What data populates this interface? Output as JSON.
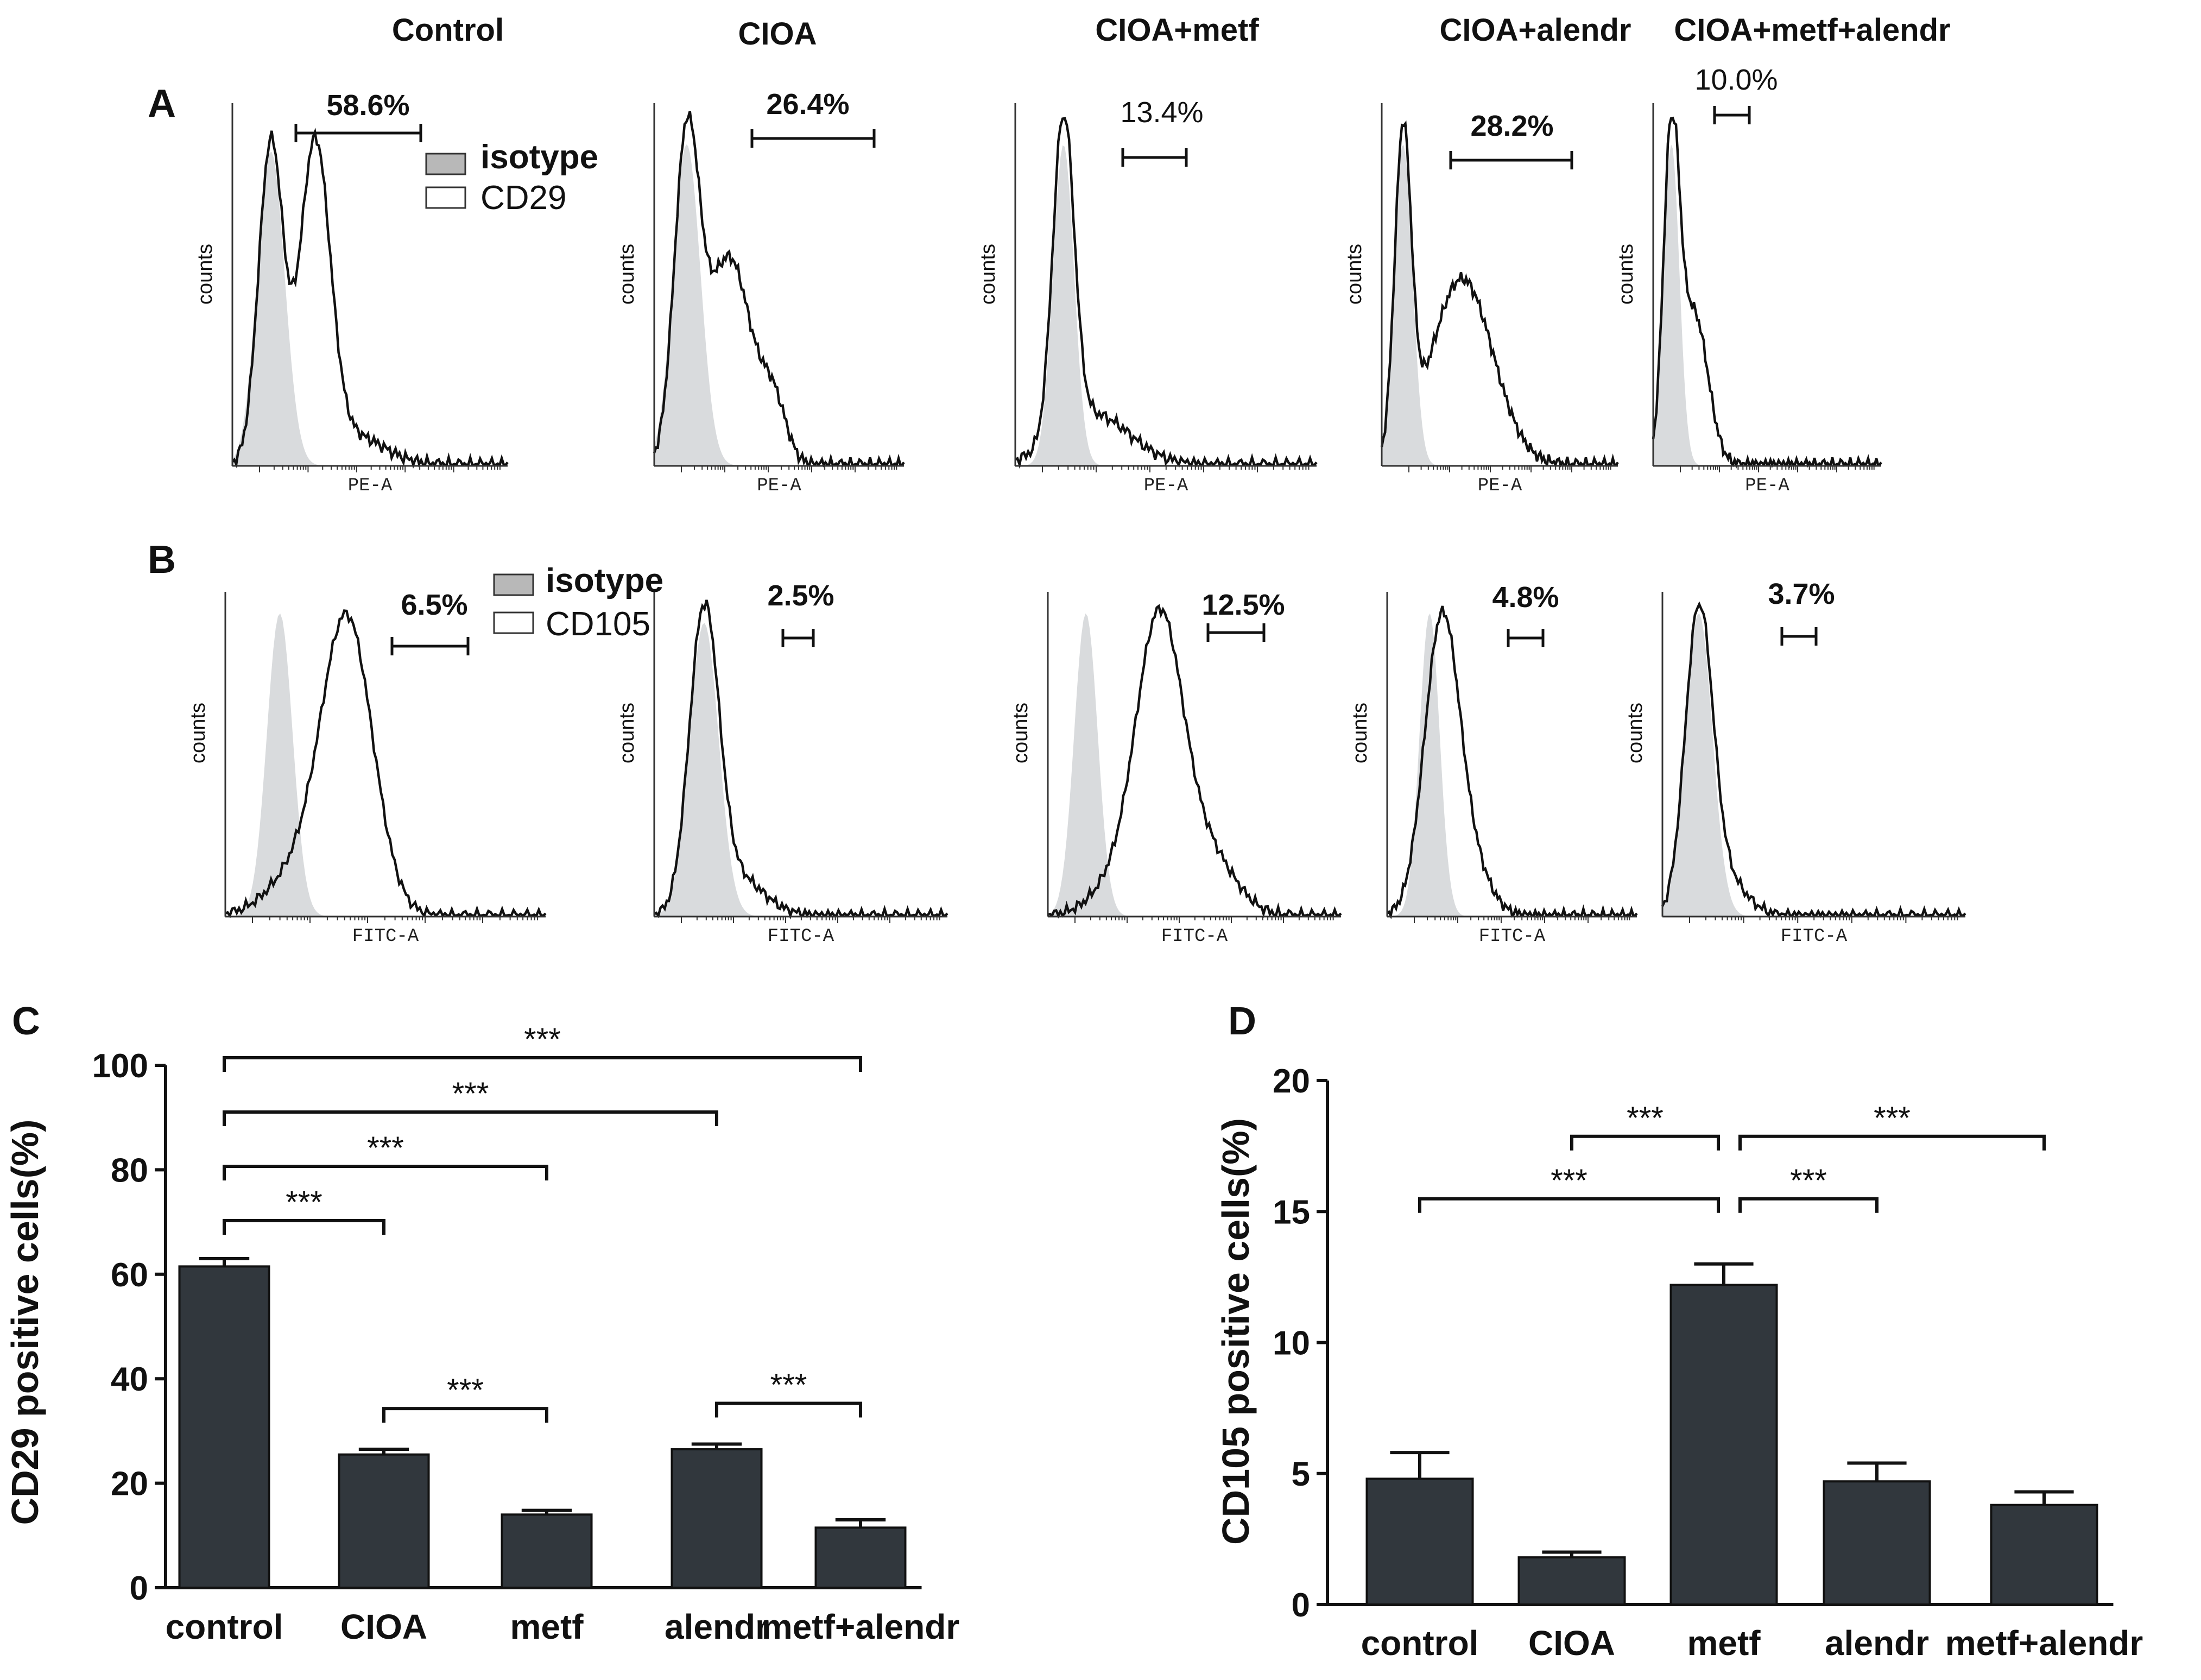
{
  "colors": {
    "bar": "#31373d",
    "iso_fill": "#d9dbdd",
    "line": "#111111",
    "text": "#111111"
  },
  "column_titles": [
    "Control",
    "CIOA",
    "CIOA+metf",
    "CIOA+alendr",
    "CIOA+metf+alendr"
  ],
  "panel_letters": {
    "a": "A",
    "b": "B",
    "c": "C",
    "d": "D"
  },
  "flow": {
    "count_label": "counts",
    "legend": {
      "isotype": "isotype",
      "cd29": "CD29",
      "cd105": "CD105"
    },
    "row_a": {
      "axis_label": "PE-A",
      "percents": [
        "58.6%",
        "26.4%",
        "13.4%",
        "28.2%",
        "10.0%"
      ]
    },
    "row_b": {
      "axis_label": "FITC-A",
      "percents": [
        "6.5%",
        "2.5%",
        "12.5%",
        "4.8%",
        "3.7%"
      ]
    }
  },
  "chart_data": [
    {
      "type": "bar",
      "panel": "C",
      "title": "",
      "xlabel": "",
      "ylabel": "CD29 positive cells(%)",
      "ylim": [
        0,
        100
      ],
      "yticks": [
        "0",
        "20",
        "40",
        "60",
        "80",
        "100"
      ],
      "categories": [
        "control",
        "CIOA",
        "metf",
        "alendr",
        "metf+alendr"
      ],
      "values": [
        61.5,
        25.5,
        14,
        26.5,
        11.5
      ],
      "errors": [
        1.5,
        1,
        0.8,
        1,
        1.5
      ],
      "significance": [
        {
          "from": 0,
          "to": 1,
          "label": "***"
        },
        {
          "from": 0,
          "to": 2,
          "label": "***"
        },
        {
          "from": 0,
          "to": 3,
          "label": "***"
        },
        {
          "from": 0,
          "to": 4,
          "label": "***"
        },
        {
          "from": 1,
          "to": 2,
          "label": "***"
        },
        {
          "from": 3,
          "to": 4,
          "label": "***"
        }
      ]
    },
    {
      "type": "bar",
      "panel": "D",
      "title": "",
      "xlabel": "",
      "ylabel": "CD105 positive cells(%)",
      "ylim": [
        0,
        20
      ],
      "yticks": [
        "0",
        "5",
        "10",
        "15",
        "20"
      ],
      "categories": [
        "control",
        "CIOA",
        "metf",
        "alendr",
        "metf+alendr"
      ],
      "values": [
        4.8,
        1.8,
        12.2,
        4.7,
        3.8
      ],
      "errors": [
        1,
        0.2,
        0.8,
        0.7,
        0.5
      ],
      "significance": [
        {
          "from": 0,
          "to": 2,
          "label": "***"
        },
        {
          "from": 1,
          "to": 2,
          "label": "***"
        },
        {
          "from": 2,
          "to": 3,
          "label": "***"
        },
        {
          "from": 2,
          "to": 4,
          "label": "***"
        }
      ]
    }
  ]
}
